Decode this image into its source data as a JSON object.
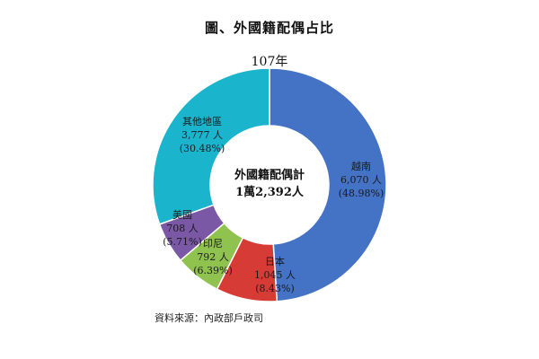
{
  "title": "圖、外國籍配偶占比",
  "subtitle": "107年",
  "center": {
    "line1": "外國籍配偶計",
    "line2": "1萬2,392人"
  },
  "source": "資料來源：內政部戶政司",
  "chart_data": {
    "type": "pie",
    "title": "圖、外國籍配偶占比",
    "subtitle": "107年",
    "total_label": "1萬2,392人",
    "slices": [
      {
        "name": "越南",
        "count_label": "6,070 人",
        "value": 6070,
        "percent": 48.98,
        "percent_label": "(48.98%)",
        "color": "#4472c4"
      },
      {
        "name": "日本",
        "count_label": "1,045 人",
        "value": 1045,
        "percent": 8.43,
        "percent_label": "(8.43%)",
        "color": "#d63b36"
      },
      {
        "name": "印尼",
        "count_label": "792 人",
        "value": 792,
        "percent": 6.39,
        "percent_label": "(6.39%)",
        "color": "#8fc24e"
      },
      {
        "name": "美國",
        "count_label": "708 人",
        "value": 708,
        "percent": 5.71,
        "percent_label": "(5.71%)",
        "color": "#7a58a6"
      },
      {
        "name": "其他地區",
        "count_label": "3,777 人",
        "value": 3777,
        "percent": 30.48,
        "percent_label": "(30.48%)",
        "color": "#1ab4cc"
      }
    ]
  }
}
